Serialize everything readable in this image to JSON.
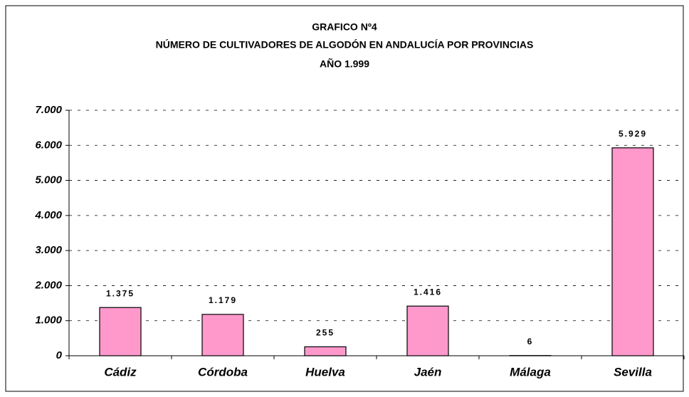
{
  "chart_data": {
    "type": "bar",
    "title": [
      "GRAFICO Nº4",
      "NÚMERO DE CULTIVADORES DE ALGODÓN EN ANDALUCÍA POR PROVINCIAS",
      "AÑO 1.999"
    ],
    "categories": [
      "Cádiz",
      "Córdoba",
      "Huelva",
      "Jaén",
      "Málaga",
      "Sevilla"
    ],
    "values": [
      1375,
      1179,
      255,
      1416,
      6,
      5929
    ],
    "value_labels": [
      "1.375",
      "1.179",
      "255",
      "1.416",
      "6",
      "5.929"
    ],
    "color": "#ff99cc",
    "ylim": [
      0,
      7000
    ],
    "yticks": [
      0,
      {
        "value": 1000,
        "label": "1.000"
      },
      {
        "value": 2000,
        "label": "2.000"
      },
      {
        "value": 3000,
        "label": "3.000"
      },
      {
        "value": 4000,
        "label": "4.000"
      },
      {
        "value": 5000,
        "label": "5.000"
      },
      {
        "value": 6000,
        "label": "6.000"
      },
      {
        "value": 7000,
        "label": "7.000"
      }
    ],
    "grid": true
  }
}
